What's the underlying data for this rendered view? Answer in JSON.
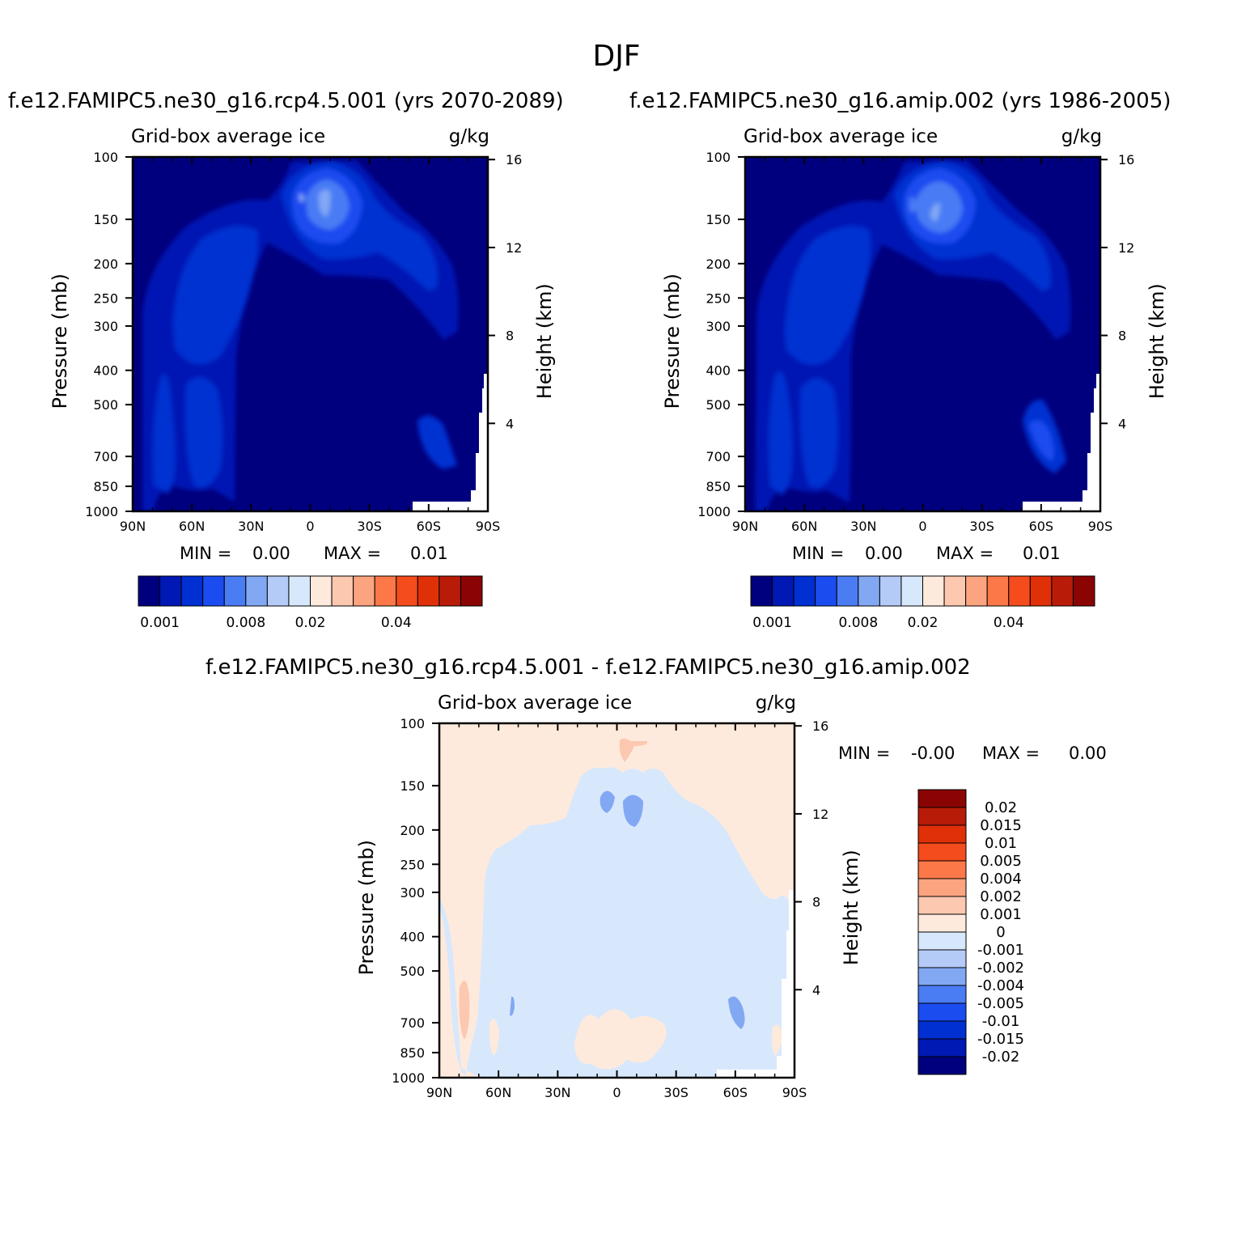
{
  "figure": {
    "main_title": "DJF",
    "panel_titles": {
      "left": "f.e12.FAMIPC5.ne30_g16.rcp4.5.001 (yrs 2070-2089)",
      "right": "f.e12.FAMIPC5.ne30_g16.amip.002 (yrs 1986-2005)",
      "diff": "f.e12.FAMIPC5.ne30_g16.rcp4.5.001 - f.e12.FAMIPC5.ne30_g16.amip.002"
    }
  },
  "chart_data": [
    {
      "id": "case",
      "type": "heatmap",
      "title": "f.e12.FAMIPC5.ne30_g16.rcp4.5.001 (yrs 2070-2089)",
      "variable_label": "Grid-box average ice",
      "units_label": "g/kg",
      "xlabel": "",
      "ylabel": "Pressure (mb)",
      "y2label": "Height (km)",
      "x_ticks": [
        "90N",
        "60N",
        "30N",
        "0",
        "30S",
        "60S",
        "90S"
      ],
      "y_ticks": [
        100,
        150,
        200,
        250,
        300,
        400,
        500,
        700,
        850,
        1000
      ],
      "y2_ticks": [
        16,
        12,
        8,
        4
      ],
      "min_label": "MIN =",
      "min_value": "0.00",
      "max_label": "MAX =",
      "max_value": "0.01",
      "colorbar_levels": [
        0.001,
        0.002,
        0.004,
        0.006,
        0.008,
        0.01,
        0.015,
        0.02,
        0.025,
        0.03,
        0.035,
        0.04,
        0.045,
        0.05,
        0.06,
        0.07
      ],
      "colorbar_tick_labels": [
        "0.001",
        "0.008",
        "0.02",
        "0.04"
      ]
    },
    {
      "id": "control",
      "type": "heatmap",
      "title": "f.e12.FAMIPC5.ne30_g16.amip.002 (yrs 1986-2005)",
      "variable_label": "Grid-box average ice",
      "units_label": "g/kg",
      "xlabel": "",
      "ylabel": "Pressure (mb)",
      "y2label": "Height (km)",
      "x_ticks": [
        "90N",
        "60N",
        "30N",
        "0",
        "30S",
        "60S",
        "90S"
      ],
      "y_ticks": [
        100,
        150,
        200,
        250,
        300,
        400,
        500,
        700,
        850,
        1000
      ],
      "y2_ticks": [
        16,
        12,
        8,
        4
      ],
      "min_label": "MIN =",
      "min_value": "0.00",
      "max_label": "MAX =",
      "max_value": "0.01",
      "colorbar_levels": [
        0.001,
        0.002,
        0.004,
        0.006,
        0.008,
        0.01,
        0.015,
        0.02,
        0.025,
        0.03,
        0.035,
        0.04,
        0.045,
        0.05,
        0.06,
        0.07
      ],
      "colorbar_tick_labels": [
        "0.001",
        "0.008",
        "0.02",
        "0.04"
      ]
    },
    {
      "id": "difference",
      "type": "heatmap",
      "title": "f.e12.FAMIPC5.ne30_g16.rcp4.5.001 - f.e12.FAMIPC5.ne30_g16.amip.002",
      "variable_label": "Grid-box average ice",
      "units_label": "g/kg",
      "xlabel": "",
      "ylabel": "Pressure (mb)",
      "y2label": "Height (km)",
      "x_ticks": [
        "90N",
        "60N",
        "30N",
        "0",
        "30S",
        "60S",
        "90S"
      ],
      "y_ticks": [
        100,
        150,
        200,
        250,
        300,
        400,
        500,
        700,
        850,
        1000
      ],
      "y2_ticks": [
        16,
        12,
        8,
        4
      ],
      "min_label": "MIN =",
      "min_value": "-0.00",
      "max_label": "MAX =",
      "max_value": "0.00",
      "colorbar_tick_labels": [
        "0.02",
        "0.015",
        "0.01",
        "0.005",
        "0.004",
        "0.002",
        "0.001",
        "0",
        "-0.001",
        "-0.002",
        "-0.004",
        "-0.005",
        "-0.01",
        "-0.015",
        "-0.02"
      ]
    }
  ],
  "colors": {
    "sequential": [
      "#00007e",
      "#0018b4",
      "#0030d2",
      "#1a4cf0",
      "#4a7cf4",
      "#82a8f4",
      "#b4cbf8",
      "#d8e8fc",
      "#feeadc",
      "#fcc8b0",
      "#fca480",
      "#fc7848",
      "#f44c1c",
      "#e03008",
      "#b81c08",
      "#8a0404"
    ],
    "diverging": [
      "#8a0404",
      "#b81c08",
      "#e03008",
      "#f44c1c",
      "#fc7848",
      "#fca480",
      "#fcc8b0",
      "#feeadc",
      "#d8e8fc",
      "#b4cbf8",
      "#82a8f4",
      "#4a7cf4",
      "#1a4cf0",
      "#0030d2",
      "#0018b4",
      "#00007e"
    ]
  }
}
